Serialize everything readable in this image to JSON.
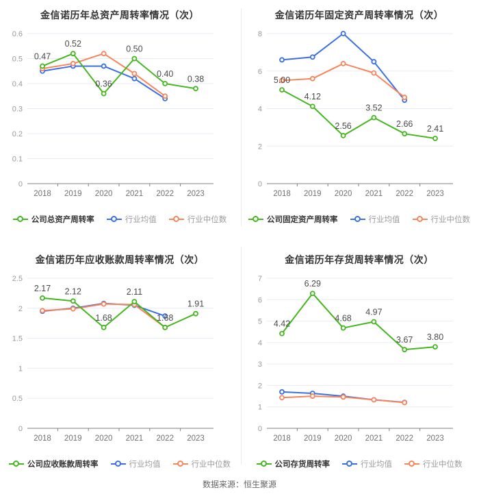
{
  "page": {
    "footer": "数据来源：恒生聚源"
  },
  "palette": {
    "company": "#44b71e",
    "industry_avg": "#3a6fe4",
    "industry_median": "#f8845b",
    "grid": "#e7ebf4",
    "axis": "#7f7f7f",
    "tick_label": "#999999",
    "x_label": "#707070",
    "data_label": "#4a4a4a",
    "title": "#333333"
  },
  "chart_data": [
    {
      "type": "line",
      "title": "金信诺历年总资产周转率情况（次）",
      "x_labels": [
        "2018",
        "2019",
        "2020",
        "2021",
        "2022",
        "2023"
      ],
      "y_ticks": [
        "0",
        "0.1",
        "0.2",
        "0.3",
        "0.4",
        "0.5",
        "0.6"
      ],
      "y_max": 0.6,
      "legend_position": "bottom",
      "series": [
        {
          "name": "公司总资产周转率",
          "role": "company",
          "values": [
            0.47,
            0.52,
            0.36,
            0.5,
            0.4,
            0.38
          ],
          "labels": [
            "0.47",
            "0.52",
            "0.36",
            "0.50",
            "0.40",
            "0.38"
          ]
        },
        {
          "name": "行业均值",
          "role": "industry_avg",
          "values": [
            0.45,
            0.47,
            0.47,
            0.42,
            0.34,
            null
          ]
        },
        {
          "name": "行业中位数",
          "role": "industry_median",
          "values": [
            0.46,
            0.48,
            0.52,
            0.44,
            0.35,
            null
          ]
        }
      ]
    },
    {
      "type": "line",
      "title": "金信诺历年固定资产周转率情况（次）",
      "x_labels": [
        "2018",
        "2019",
        "2020",
        "2021",
        "2022",
        "2023"
      ],
      "y_ticks": [
        "0",
        "2",
        "4",
        "6",
        "8"
      ],
      "y_max": 8,
      "legend_position": "bottom",
      "series": [
        {
          "name": "公司固定资产周转率",
          "role": "company",
          "values": [
            5.0,
            4.12,
            2.56,
            3.52,
            2.66,
            2.41
          ],
          "labels": [
            "5.00",
            "4.12",
            "2.56",
            "3.52",
            "2.66",
            "2.41"
          ]
        },
        {
          "name": "行业均值",
          "role": "industry_avg",
          "values": [
            6.6,
            6.75,
            8.0,
            6.5,
            4.45,
            null
          ]
        },
        {
          "name": "行业中位数",
          "role": "industry_median",
          "values": [
            5.5,
            5.6,
            6.4,
            5.9,
            4.6,
            null
          ]
        }
      ]
    },
    {
      "type": "line",
      "title": "金信诺历年应收账款周转率情况（次）",
      "x_labels": [
        "2018",
        "2019",
        "2020",
        "2021",
        "2022",
        "2023"
      ],
      "y_ticks": [
        "0",
        "0.5",
        "1",
        "1.5",
        "2",
        "2.5"
      ],
      "y_max": 2.5,
      "legend_position": "bottom",
      "series": [
        {
          "name": "公司应收账款周转率",
          "role": "company",
          "values": [
            2.17,
            2.12,
            1.68,
            2.11,
            1.68,
            1.91
          ],
          "labels": [
            "2.17",
            "2.12",
            "1.68",
            "2.11",
            "1.68",
            "1.91"
          ]
        },
        {
          "name": "行业均值",
          "role": "industry_avg",
          "values": [
            1.95,
            2.0,
            2.08,
            2.05,
            1.87,
            null
          ]
        },
        {
          "name": "行业中位数",
          "role": "industry_median",
          "values": [
            1.96,
            1.99,
            2.07,
            2.06,
            1.68,
            null
          ]
        }
      ]
    },
    {
      "type": "line",
      "title": "金信诺历年存货周转率情况（次）",
      "x_labels": [
        "2018",
        "2019",
        "2020",
        "2021",
        "2022",
        "2023"
      ],
      "y_ticks": [
        "0",
        "1",
        "2",
        "3",
        "4",
        "5",
        "6",
        "7"
      ],
      "y_max": 7,
      "legend_position": "bottom",
      "series": [
        {
          "name": "公司存货周转率",
          "role": "company",
          "values": [
            4.42,
            6.29,
            4.68,
            4.97,
            3.67,
            3.8
          ],
          "labels": [
            "4.42",
            "6.29",
            "4.68",
            "4.97",
            "3.67",
            "3.80"
          ]
        },
        {
          "name": "行业均值",
          "role": "industry_avg",
          "values": [
            1.7,
            1.63,
            1.5,
            1.33,
            1.21,
            null
          ]
        },
        {
          "name": "行业中位数",
          "role": "industry_median",
          "values": [
            1.43,
            1.5,
            1.46,
            1.33,
            1.2,
            null
          ]
        }
      ]
    }
  ]
}
